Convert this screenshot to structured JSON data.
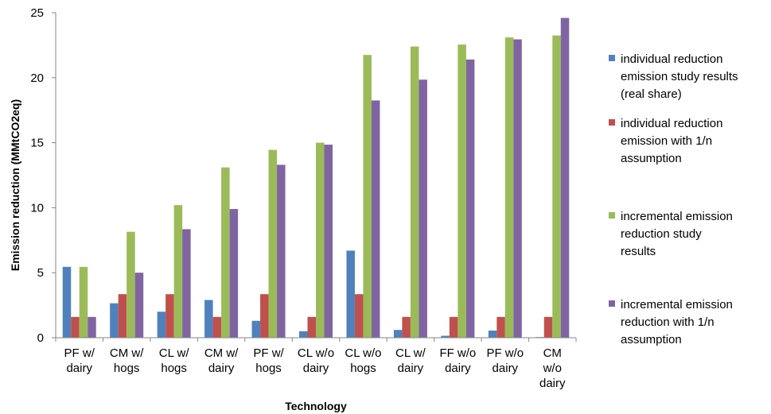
{
  "chart_data": {
    "type": "bar",
    "xlabel": "Technology",
    "ylabel": "Emission reduction  (MMtCO2eq)",
    "ylim": [
      0,
      25
    ],
    "yticks": [
      0,
      5,
      10,
      15,
      20,
      25
    ],
    "grid": false,
    "legend_position": "right",
    "categories": [
      [
        "PF w/",
        "dairy"
      ],
      [
        "CM w/",
        "hogs"
      ],
      [
        "CL w/",
        "hogs"
      ],
      [
        "CM w/",
        "dairy"
      ],
      [
        "PF w/",
        "hogs"
      ],
      [
        "CL w/o",
        "dairy"
      ],
      [
        "CL w/o",
        "hogs"
      ],
      [
        "CL w/",
        "dairy"
      ],
      [
        "FF w/o",
        "dairy"
      ],
      [
        "PF w/o",
        "dairy"
      ],
      [
        "CM",
        "w/o",
        "dairy"
      ]
    ],
    "series": [
      {
        "name": [
          "individual reduction",
          "emission study results",
          "(real share)"
        ],
        "color": "#4F81BD",
        "values": [
          5.45,
          2.65,
          2.0,
          2.9,
          1.3,
          0.5,
          6.7,
          0.6,
          0.15,
          0.55,
          0.05
        ]
      },
      {
        "name": [
          "individual reduction",
          "emission with 1/n",
          "assumption"
        ],
        "color": "#C0504D",
        "values": [
          1.6,
          3.35,
          3.35,
          1.6,
          3.35,
          1.6,
          3.35,
          1.6,
          1.6,
          1.6,
          1.6
        ]
      },
      {
        "name": [
          "incremental emission",
          "reduction study",
          "results"
        ],
        "color": "#9BBB59",
        "values": [
          5.45,
          8.15,
          10.2,
          13.1,
          14.45,
          15.0,
          21.75,
          22.4,
          22.55,
          23.1,
          23.25
        ]
      },
      {
        "name": [
          "incremental emission",
          "reduction with 1/n",
          "assumption"
        ],
        "color": "#8064A2",
        "values": [
          1.6,
          5.0,
          8.35,
          9.9,
          13.3,
          14.85,
          18.25,
          19.85,
          21.4,
          22.95,
          24.6
        ]
      }
    ]
  }
}
